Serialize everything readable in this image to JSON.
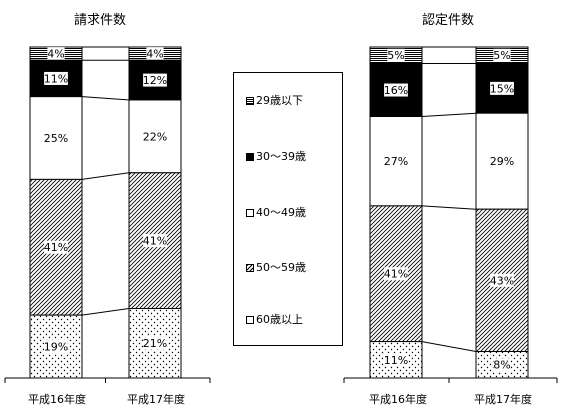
{
  "legend": [
    {
      "key": "under29",
      "label": "29歳以下"
    },
    {
      "key": "30s",
      "label": "30～39歳"
    },
    {
      "key": "40s",
      "label": "40～49歳"
    },
    {
      "key": "50s",
      "label": "50～59歳"
    },
    {
      "key": "60s",
      "label": "60歳以上"
    }
  ],
  "chart_data": [
    {
      "type": "bar",
      "stacked": true,
      "normalized": true,
      "title": "請求件数",
      "categories": [
        "平成16年度",
        "平成17年度"
      ],
      "series": [
        {
          "name": "29歳以下",
          "values": [
            4,
            4
          ],
          "labels": [
            "4%",
            "4%"
          ]
        },
        {
          "name": "30～39歳",
          "values": [
            11,
            12
          ],
          "labels": [
            "11%",
            "12%"
          ]
        },
        {
          "name": "40～49歳",
          "values": [
            25,
            22
          ],
          "labels": [
            "25%",
            "22%"
          ]
        },
        {
          "name": "50～59歳",
          "values": [
            41,
            41
          ],
          "labels": [
            "41%",
            "41%"
          ]
        },
        {
          "name": "60歳以上",
          "values": [
            19,
            21
          ],
          "labels": [
            "19%",
            "21%"
          ]
        }
      ],
      "ylim": [
        0,
        100
      ]
    },
    {
      "type": "bar",
      "stacked": true,
      "normalized": true,
      "title": "認定件数",
      "categories": [
        "平成16年度",
        "平成17年度"
      ],
      "series": [
        {
          "name": "29歳以下",
          "values": [
            5,
            5
          ],
          "labels": [
            "5%",
            "5%"
          ]
        },
        {
          "name": "30～39歳",
          "values": [
            16,
            15
          ],
          "labels": [
            "16%",
            "15%"
          ]
        },
        {
          "name": "40～49歳",
          "values": [
            27,
            29
          ],
          "labels": [
            "27%",
            "29%"
          ]
        },
        {
          "name": "50～59歳",
          "values": [
            41,
            43
          ],
          "labels": [
            "41%",
            "43%"
          ]
        },
        {
          "name": "60歳以上",
          "values": [
            11,
            8
          ],
          "labels": [
            "11%",
            "8%"
          ]
        }
      ],
      "ylim": [
        0,
        100
      ]
    }
  ]
}
